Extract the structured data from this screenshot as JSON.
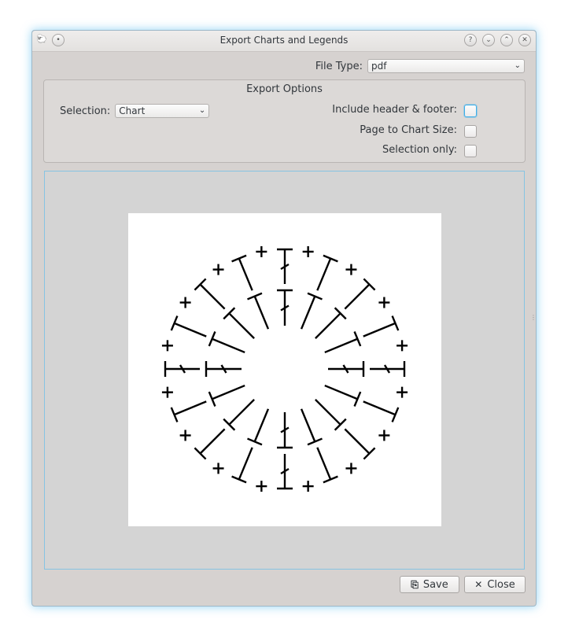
{
  "window": {
    "title": "Export Charts and Legends",
    "app_icon": "sheep-icon",
    "title_buttons": [
      {
        "name": "help-button",
        "glyph": "?"
      },
      {
        "name": "minimize-button",
        "glyph": "⌄"
      },
      {
        "name": "maximize-button",
        "glyph": "⌃"
      },
      {
        "name": "close-window-button",
        "glyph": "✕"
      }
    ],
    "left_buttons": [
      {
        "name": "pin-button",
        "glyph": "•"
      }
    ]
  },
  "file_type": {
    "label": "File Type:",
    "value": "pdf"
  },
  "export_options": {
    "title": "Export Options",
    "selection_label": "Selection:",
    "selection_value": "Chart",
    "include_header_footer": {
      "label": "Include header & footer:",
      "checked": false
    },
    "page_to_chart_size": {
      "label": "Page to Chart Size:",
      "checked": false
    },
    "selection_only": {
      "label": "Selection only:",
      "checked": false
    }
  },
  "buttons": {
    "save": {
      "label": "Save",
      "icon": "save-icon"
    },
    "close": {
      "label": "Close",
      "icon": "close-icon"
    }
  },
  "colors": {
    "accent": "#3daee9",
    "preview_bg": "#d4d4d4",
    "stitch": "#000000"
  }
}
